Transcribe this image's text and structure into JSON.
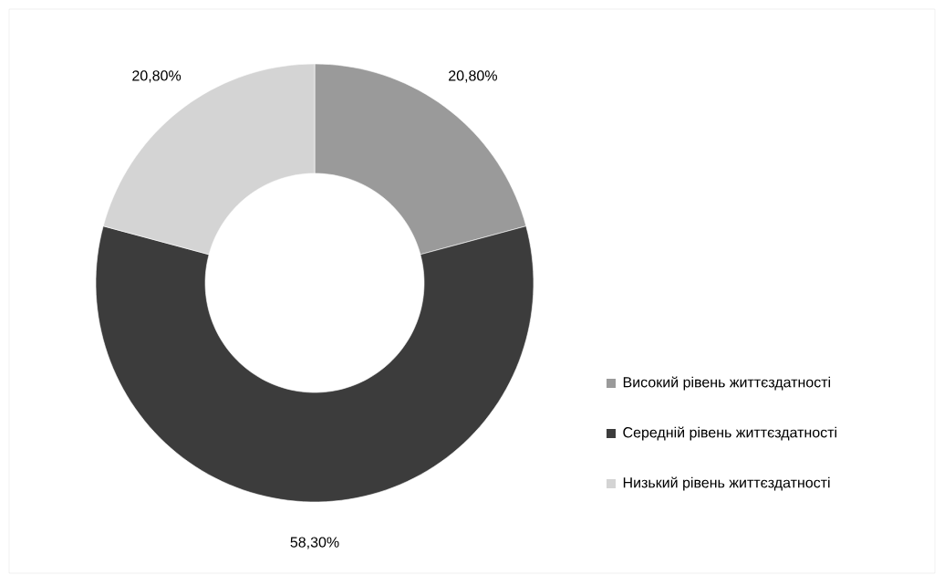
{
  "chart_data": {
    "type": "donut",
    "categories": [
      "Високий рівень життєздатності",
      "Середній рівень життєздатності",
      "Низький рівень життєздатності"
    ],
    "values": [
      20.8,
      58.3,
      20.8
    ],
    "value_labels": [
      "20,80%",
      "58,30%",
      "20,80%"
    ],
    "colors": [
      "#9a9a9a",
      "#3c3c3c",
      "#d4d4d4"
    ],
    "legend": "right"
  }
}
